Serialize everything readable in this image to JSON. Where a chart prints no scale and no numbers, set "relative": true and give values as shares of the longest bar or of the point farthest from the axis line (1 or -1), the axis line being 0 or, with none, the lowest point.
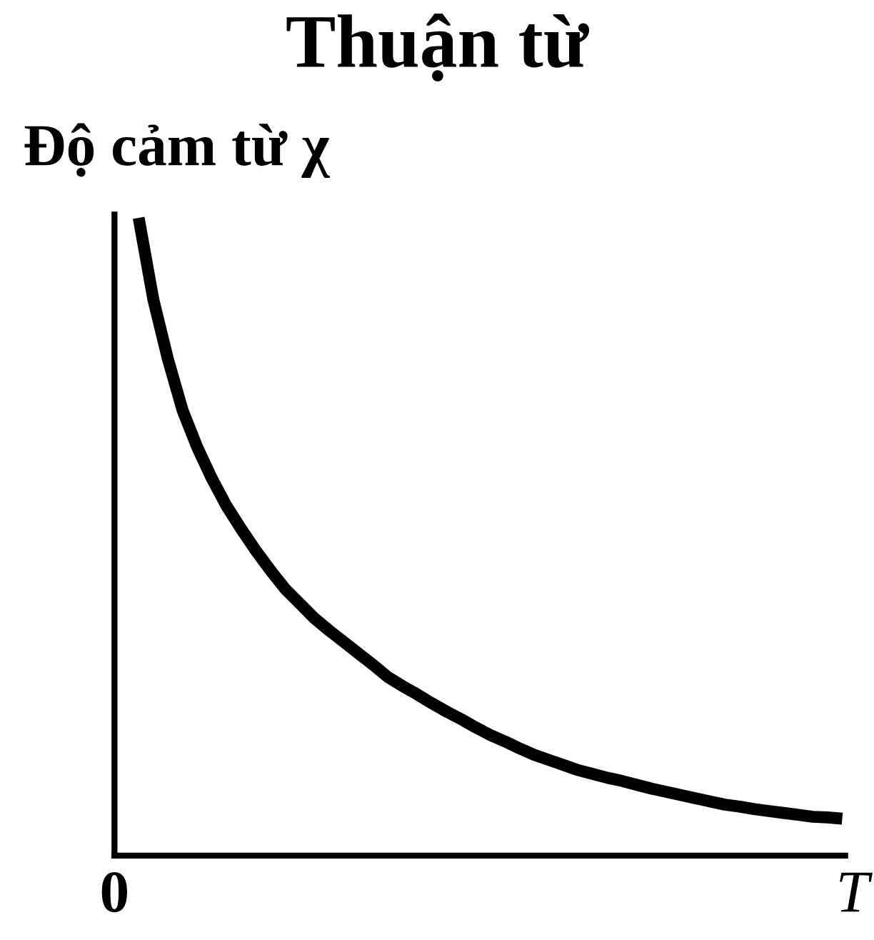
{
  "chart_data": {
    "type": "line",
    "title": "Thuận từ",
    "ylabel": "Độ cảm từ χ",
    "xlabel": "T",
    "annotations": [
      "0"
    ],
    "relative": true,
    "categories": [
      null,
      null,
      null,
      null,
      null,
      null,
      null,
      null,
      null,
      null,
      null,
      null,
      null,
      null,
      null,
      null,
      null,
      null,
      null,
      null,
      null,
      null,
      null,
      null,
      null,
      null,
      null,
      null,
      null,
      null,
      null,
      null,
      null,
      null,
      null,
      null,
      null,
      null,
      null,
      null,
      null,
      null,
      null,
      null,
      null,
      null,
      null,
      null,
      null
    ],
    "series": [
      {
        "color": "#000000",
        "values": [
          1.0,
          0.872,
          0.778,
          0.698,
          0.64,
          0.591,
          0.548,
          0.512,
          0.478,
          0.447,
          0.418,
          0.395,
          0.372,
          0.353,
          0.335,
          0.317,
          0.299,
          0.28,
          0.266,
          0.253,
          0.239,
          0.226,
          0.214,
          0.201,
          0.189,
          0.179,
          0.168,
          0.158,
          0.15,
          0.142,
          0.134,
          0.128,
          0.122,
          0.117,
          0.111,
          0.105,
          0.1,
          0.095,
          0.09,
          0.085,
          0.08,
          0.077,
          0.073,
          0.07,
          0.067,
          0.064,
          0.061,
          0.06,
          0.058
        ]
      }
    ],
    "marker": "none",
    "line_style": "solid"
  }
}
